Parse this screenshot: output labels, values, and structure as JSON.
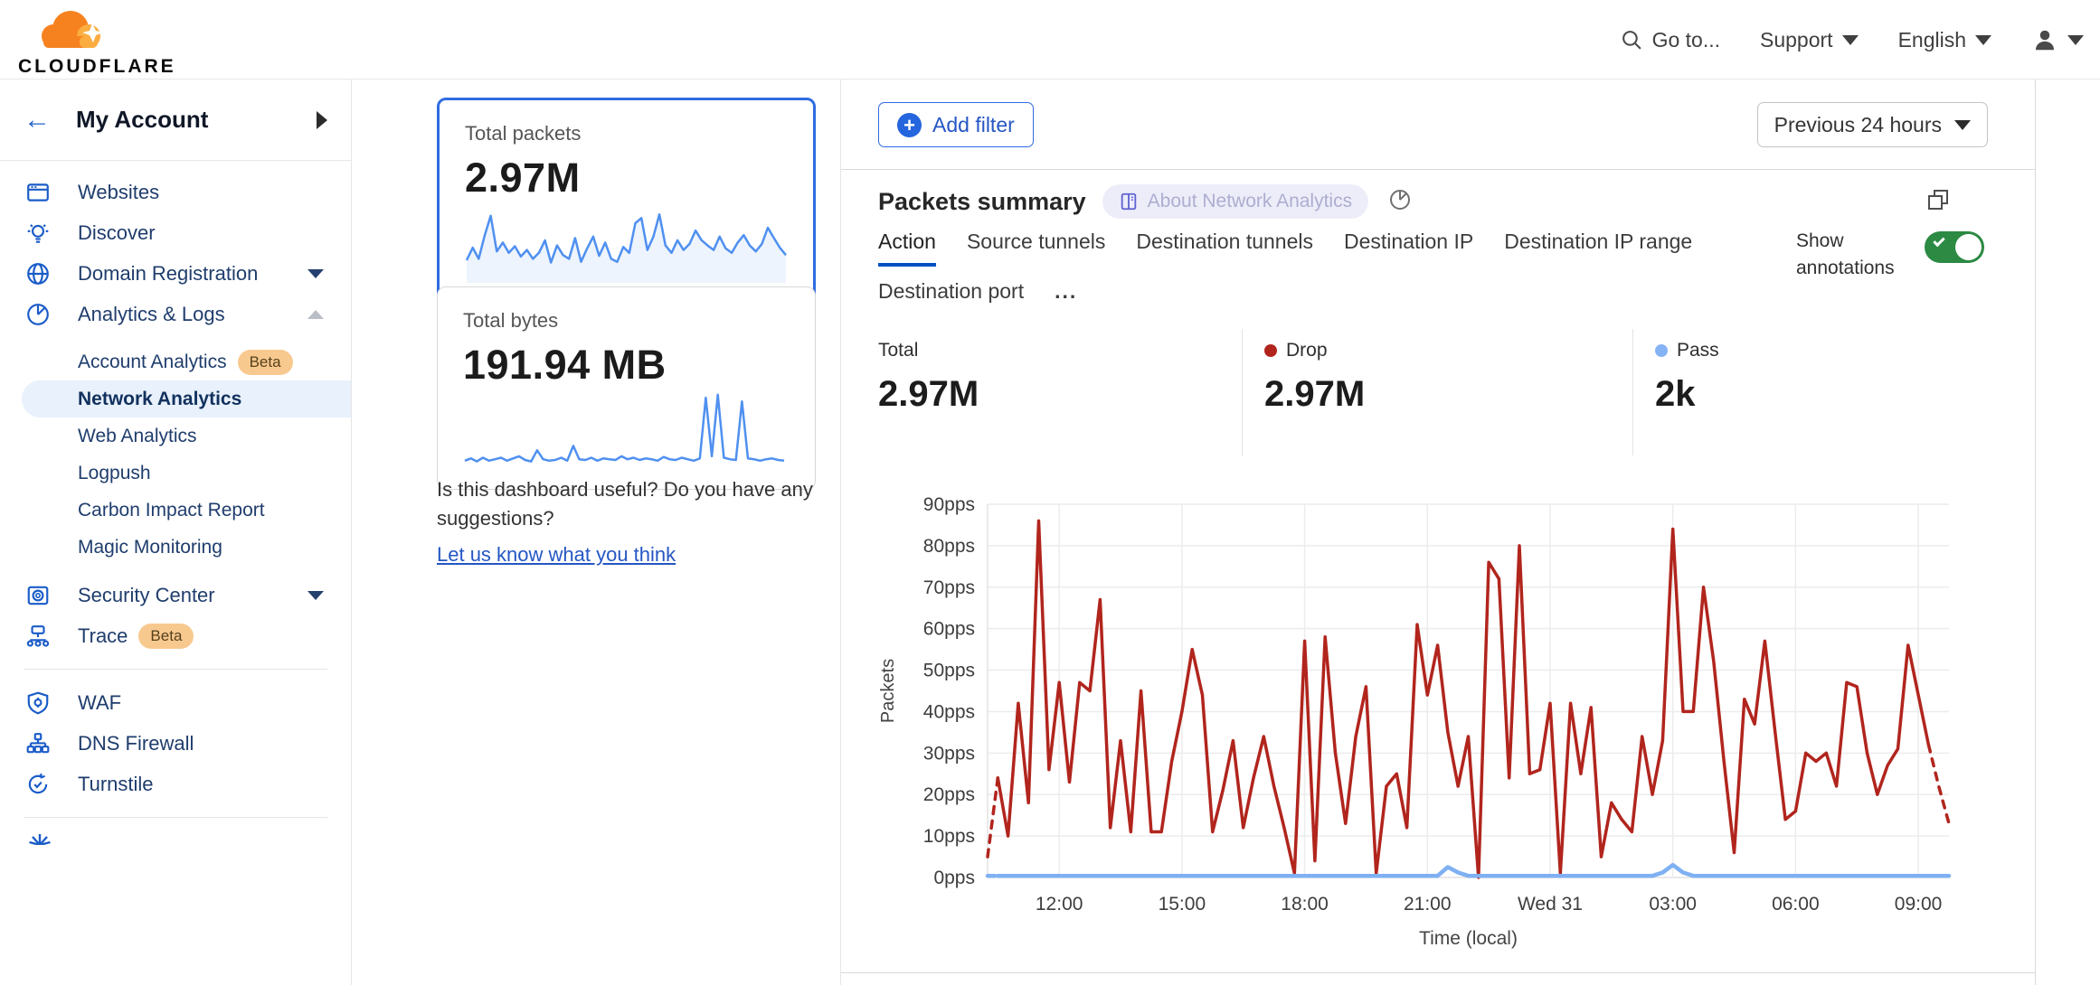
{
  "topbar": {
    "brand": "CLOUDFLARE",
    "goto_label": "Go to...",
    "support_label": "Support",
    "language_label": "English"
  },
  "sidebar": {
    "account_label": "My Account",
    "items": [
      {
        "label": "Websites"
      },
      {
        "label": "Discover"
      },
      {
        "label": "Domain Registration"
      },
      {
        "label": "Analytics & Logs"
      },
      {
        "label": "Account Analytics",
        "badge": "Beta"
      },
      {
        "label": "Network Analytics"
      },
      {
        "label": "Web Analytics"
      },
      {
        "label": "Logpush"
      },
      {
        "label": "Carbon Impact Report"
      },
      {
        "label": "Magic Monitoring"
      },
      {
        "label": "Security Center"
      },
      {
        "label": "Trace",
        "badge": "Beta"
      },
      {
        "label": "WAF"
      },
      {
        "label": "DNS Firewall"
      },
      {
        "label": "Turnstile"
      }
    ]
  },
  "summary_cards": {
    "packets": {
      "title": "Total packets",
      "value": "2.97M"
    },
    "bytes": {
      "title": "Total bytes",
      "value": "191.94 MB"
    }
  },
  "feedback": {
    "question": "Is this dashboard useful? Do you have any suggestions?",
    "link": "Let us know what you think"
  },
  "filters": {
    "add_filter": "Add filter",
    "time_range": "Previous 24 hours"
  },
  "panel": {
    "title": "Packets summary",
    "about_badge": "About Network Analytics",
    "tabs": [
      "Action",
      "Source tunnels",
      "Destination tunnels",
      "Destination IP",
      "Destination IP range",
      "Destination port"
    ],
    "more_tabs": "...",
    "show_annotations": "Show annotations",
    "stats": [
      {
        "label": "Total",
        "value": "2.97M",
        "dot": ""
      },
      {
        "label": "Drop",
        "value": "2.97M",
        "dot": "#b1251d"
      },
      {
        "label": "Pass",
        "value": "2k",
        "dot": "#85b3f4"
      }
    ]
  },
  "colors": {
    "drop_red": "#b1251d",
    "pass_blue": "#7fb0f2",
    "spark_blue": "#4f90f0",
    "selected_card_border": "#2f6ce0",
    "link_blue": "#2456c4",
    "toggle_green": "#2c8a43",
    "active_tab_underline": "#0051c3",
    "beta_badge_bg": "#f8c98f",
    "logo_orange": "#f6821f",
    "logo_light_orange": "#fbad41"
  },
  "chart_data": [
    {
      "id": "total_packets_spark",
      "type": "line",
      "title": "Total packets sparkline",
      "max": 100,
      "values": [
        28,
        45,
        30,
        62,
        88,
        40,
        52,
        38,
        47,
        33,
        42,
        30,
        38,
        55,
        25,
        48,
        35,
        30,
        58,
        26,
        44,
        60,
        34,
        52,
        30,
        26,
        46,
        38,
        78,
        85,
        42,
        60,
        90,
        48,
        38,
        55,
        42,
        50,
        68,
        55,
        48,
        42,
        60,
        44,
        38,
        52,
        62,
        48,
        40,
        50,
        72,
        58,
        45,
        35
      ]
    },
    {
      "id": "total_bytes_spark",
      "type": "line",
      "title": "Total bytes sparkline",
      "max": 100,
      "values": [
        10,
        13,
        9,
        14,
        10,
        12,
        14,
        10,
        13,
        16,
        11,
        9,
        24,
        12,
        10,
        11,
        14,
        10,
        30,
        12,
        11,
        14,
        10,
        13,
        12,
        11,
        16,
        12,
        14,
        11,
        13,
        12,
        10,
        15,
        12,
        11,
        14,
        12,
        10,
        13,
        95,
        16,
        99,
        14,
        12,
        11,
        90,
        13,
        12,
        10,
        12,
        13,
        11,
        10
      ]
    },
    {
      "id": "packets_summary_chart",
      "type": "line",
      "title": "Packets summary",
      "xlabel": "Time (local)",
      "ylabel": "Packets",
      "ylim": [
        0,
        90
      ],
      "ytick_step": 10,
      "ytick_suffix": "pps",
      "grid": true,
      "x_tick_indices": [
        7,
        19,
        31,
        43,
        55,
        67,
        79,
        91
      ],
      "x_tick_labels": [
        "12:00",
        "15:00",
        "18:00",
        "21:00",
        "Wed 31",
        "03:00",
        "06:00",
        "09:00"
      ],
      "series": [
        {
          "name": "Drop",
          "color": "#b1251d",
          "dash_head": 1,
          "dash_tail": 2,
          "values": [
            5,
            24,
            10,
            42,
            18,
            86,
            26,
            47,
            23,
            47,
            45,
            67,
            12,
            33,
            11,
            45,
            11,
            11,
            28,
            40,
            55,
            44,
            11,
            21,
            33,
            12,
            24,
            34,
            22,
            12,
            1,
            57,
            4,
            58,
            30,
            13,
            34,
            46,
            1,
            22,
            25,
            12,
            61,
            44,
            56,
            35,
            22,
            34,
            0,
            76,
            72,
            24,
            80,
            25,
            26,
            42,
            1,
            42,
            25,
            41,
            5,
            18,
            14,
            11,
            34,
            20,
            33,
            84,
            40,
            40,
            70,
            52,
            28,
            6,
            43,
            37,
            57,
            35,
            14,
            16,
            30,
            28,
            30,
            22,
            47,
            46,
            30,
            20,
            27,
            31,
            56,
            44,
            32,
            22,
            13
          ]
        },
        {
          "name": "Pass",
          "color": "#7fb0f2",
          "dash_head": 1,
          "dash_tail": 0,
          "values": [
            0.4,
            0.4,
            0.4,
            0.4,
            0.4,
            0.4,
            0.4,
            0.4,
            0.4,
            0.4,
            0.4,
            0.4,
            0.4,
            0.4,
            0.4,
            0.4,
            0.4,
            0.4,
            0.4,
            0.4,
            0.4,
            0.4,
            0.4,
            0.4,
            0.4,
            0.4,
            0.4,
            0.4,
            0.4,
            0.4,
            0.4,
            0.4,
            0.4,
            0.4,
            0.4,
            0.4,
            0.4,
            0.4,
            0.4,
            0.4,
            0.4,
            0.4,
            0.4,
            0.4,
            0.4,
            2.5,
            1.2,
            0.4,
            0.4,
            0.4,
            0.4,
            0.4,
            0.4,
            0.4,
            0.4,
            0.4,
            0.4,
            0.4,
            0.4,
            0.4,
            0.4,
            0.4,
            0.4,
            0.4,
            0.4,
            0.4,
            1.2,
            3,
            1.2,
            0.4,
            0.4,
            0.4,
            0.4,
            0.4,
            0.4,
            0.4,
            0.4,
            0.4,
            0.4,
            0.4,
            0.4,
            0.4,
            0.4,
            0.4,
            0.4,
            0.4,
            0.4,
            0.4,
            0.4,
            0.4,
            0.4,
            0.4,
            0.4,
            0.4,
            0.4
          ]
        }
      ]
    }
  ]
}
